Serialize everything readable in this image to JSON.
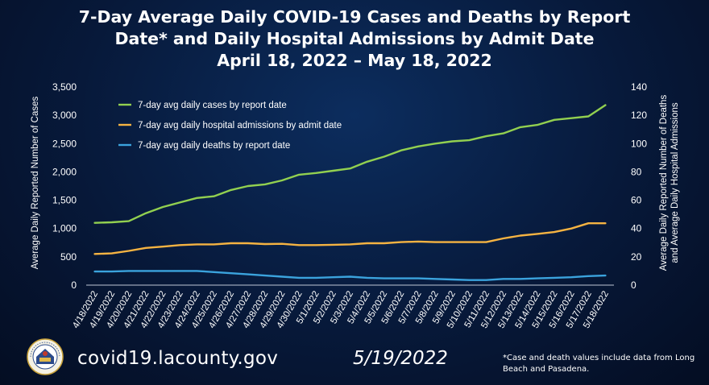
{
  "header": {
    "title_lines": [
      "7-Day Average Daily COVID-19 Cases and Deaths by Report",
      "Date* and Daily Hospital Admissions by Admit Date",
      "April 18, 2022 – May 18, 2022"
    ]
  },
  "footer": {
    "url": "covid19.lacounty.gov",
    "date": "5/19/2022",
    "note": "*Case and death values include data from Long Beach and Pasadena."
  },
  "seal": {
    "icon": "la-county-seal-icon",
    "text": "COUNTY OF LOS ANGELES CALIFORNIA"
  },
  "chart_data": {
    "type": "line",
    "background": "#07193a",
    "categories": [
      "4/18/2022",
      "4/19/2022",
      "4/20/2022",
      "4/21/2022",
      "4/22/2022",
      "4/23/2022",
      "4/24/2022",
      "4/25/2022",
      "4/26/2022",
      "4/27/2022",
      "4/28/2022",
      "4/29/2022",
      "4/30/2022",
      "5/1/2022",
      "5/2/2022",
      "5/3/2022",
      "5/4/2022",
      "5/5/2022",
      "5/6/2022",
      "5/7/2022",
      "5/8/2022",
      "5/9/2022",
      "5/10/2022",
      "5/11/2022",
      "5/12/2022",
      "5/13/2022",
      "5/14/2022",
      "5/15/2022",
      "5/16/2022",
      "5/17/2022",
      "5/18/2022"
    ],
    "y_left": {
      "label": "Average Daily Reported Number of Cases",
      "ylim": [
        0,
        3500
      ],
      "ticks": [
        "0",
        "500",
        "1,000",
        "1,500",
        "2,000",
        "2,500",
        "3,000",
        "3,500"
      ],
      "tick_values": [
        0,
        500,
        1000,
        1500,
        2000,
        2500,
        3000,
        3500
      ]
    },
    "y_right": {
      "label_lines": [
        "Average Daily Reported Number of Deaths",
        "and Average Daily Hospital Admissions"
      ],
      "ylim": [
        0,
        140
      ],
      "ticks": [
        "0",
        "20",
        "40",
        "60",
        "80",
        "100",
        "120",
        "140"
      ],
      "tick_values": [
        0,
        20,
        40,
        60,
        80,
        100,
        120,
        140
      ]
    },
    "grid": false,
    "legend_position": "top-left",
    "series": [
      {
        "name": "7-day avg daily cases by report date",
        "color": "#92d050",
        "axis": "left",
        "values": [
          1100,
          1110,
          1130,
          1270,
          1380,
          1460,
          1540,
          1570,
          1680,
          1750,
          1780,
          1850,
          1950,
          1980,
          2020,
          2060,
          2180,
          2270,
          2380,
          2450,
          2500,
          2540,
          2560,
          2630,
          2680,
          2790,
          2830,
          2920,
          2950,
          2980,
          3180
        ]
      },
      {
        "name": "7-day avg daily hospital admissions by admit date",
        "color": "#f5b342",
        "axis": "right",
        "values": [
          22,
          22.4,
          24.2,
          26.3,
          27.2,
          28.3,
          28.8,
          28.8,
          29.6,
          29.6,
          29,
          29.2,
          28.3,
          28.3,
          28.5,
          28.8,
          29.6,
          29.6,
          30.4,
          30.8,
          30.4,
          30.4,
          30.4,
          30.4,
          33,
          35,
          36.2,
          37.5,
          40,
          43.7,
          43.7
        ]
      },
      {
        "name": "7-day avg daily deaths by report date",
        "color": "#3ba3dd",
        "axis": "right",
        "values": [
          9.6,
          9.6,
          10,
          10,
          10,
          10,
          10,
          9.2,
          8.4,
          7.6,
          6.8,
          6,
          5.2,
          5.2,
          5.6,
          6,
          5.2,
          4.8,
          4.8,
          4.8,
          4.4,
          4,
          3.6,
          3.6,
          4.4,
          4.4,
          4.8,
          5.2,
          5.6,
          6.4,
          6.8
        ]
      }
    ]
  }
}
